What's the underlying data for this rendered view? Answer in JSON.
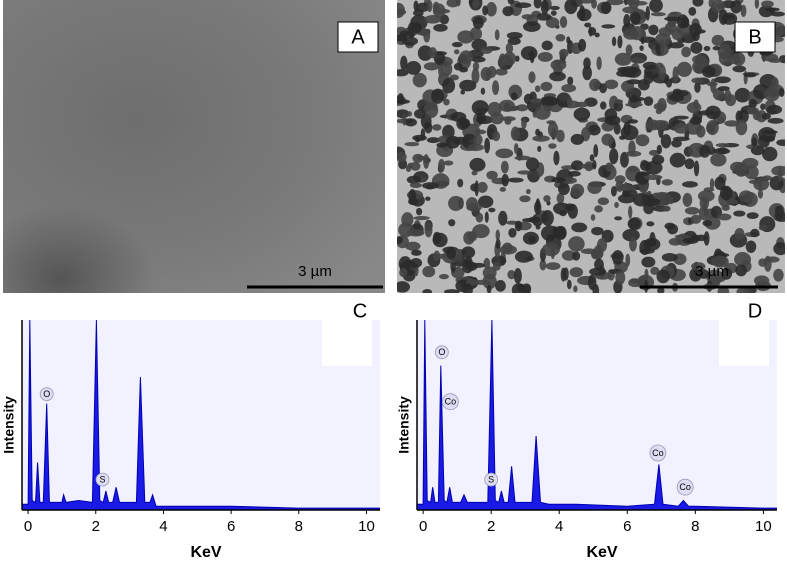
{
  "images": [
    {
      "label": "A",
      "scale_bar": "3 µm"
    },
    {
      "label": "B",
      "scale_bar": "3 µm"
    }
  ],
  "chart_data": [
    {
      "type": "line",
      "panel": "C",
      "xlabel": "KeV",
      "ylabel": "Intensity",
      "color": "#1a1ae6",
      "x": [
        -0.18,
        0,
        0.05,
        0.12,
        0.22,
        0.28,
        0.35,
        0.45,
        0.55,
        0.63,
        0.8,
        1.0,
        1.05,
        1.12,
        1.5,
        1.9,
        2.02,
        2.12,
        2.22,
        2.3,
        2.38,
        2.5,
        2.6,
        2.7,
        3.0,
        3.2,
        3.32,
        3.45,
        3.6,
        3.68,
        3.78,
        4.5,
        6,
        8,
        10,
        10.4
      ],
      "values": [
        3,
        3,
        100,
        5,
        4,
        25,
        4,
        4,
        56,
        4,
        4,
        4,
        8,
        4,
        5,
        4,
        100,
        5,
        4,
        10,
        4,
        4,
        12,
        4,
        4,
        4,
        70,
        4,
        4,
        8,
        2,
        2,
        2,
        1,
        1,
        1
      ],
      "xlim": [
        -0.18,
        10.4
      ],
      "ylim": [
        0,
        100
      ],
      "xticks": [
        0,
        2,
        4,
        6,
        8,
        10
      ],
      "annotations": [
        {
          "text": "O",
          "x": 0.55,
          "y": 61
        },
        {
          "text": "S",
          "x": 2.2,
          "y": 16
        }
      ]
    },
    {
      "type": "line",
      "panel": "D",
      "xlabel": "KeV",
      "ylabel": "Intensity",
      "color": "#1a1ae6",
      "x": [
        -0.18,
        0,
        0.05,
        0.12,
        0.22,
        0.28,
        0.35,
        0.45,
        0.52,
        0.62,
        0.7,
        0.78,
        0.86,
        1.1,
        1.2,
        1.3,
        1.9,
        2.02,
        2.12,
        2.22,
        2.3,
        2.38,
        2.5,
        2.6,
        2.7,
        3.0,
        3.2,
        3.32,
        3.45,
        3.7,
        4.5,
        6,
        6.8,
        6.93,
        7.05,
        7.5,
        7.65,
        7.8,
        8,
        10,
        10.4
      ],
      "values": [
        3,
        3,
        100,
        5,
        4,
        12,
        4,
        4,
        76,
        5,
        4,
        12,
        4,
        4,
        8,
        4,
        4,
        100,
        5,
        4,
        10,
        4,
        4,
        23,
        4,
        4,
        4,
        39,
        4,
        3,
        3,
        2,
        3,
        24,
        3,
        2,
        5,
        2,
        2,
        1,
        1
      ],
      "xlim": [
        -0.18,
        10.4
      ],
      "ylim": [
        0,
        100
      ],
      "xticks": [
        0,
        2,
        4,
        6,
        8,
        10
      ],
      "annotations": [
        {
          "text": "O",
          "x": 0.55,
          "y": 83
        },
        {
          "text": "Co",
          "x": 0.8,
          "y": 57
        },
        {
          "text": "S",
          "x": 2.0,
          "y": 16
        },
        {
          "text": "Co",
          "x": 6.9,
          "y": 30
        },
        {
          "text": "Co",
          "x": 7.7,
          "y": 12
        }
      ]
    }
  ]
}
